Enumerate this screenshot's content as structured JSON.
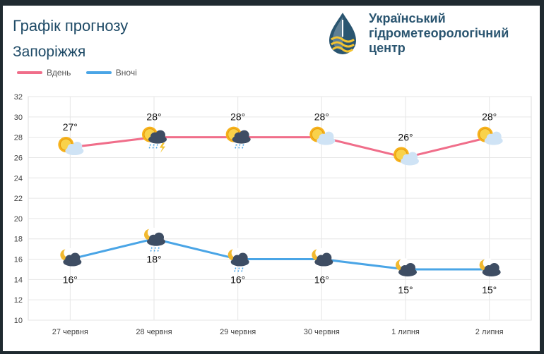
{
  "header": {
    "title": "Графік прогнозу",
    "subtitle": "Запоріжжя"
  },
  "logo": {
    "line1": "Український",
    "line2": "гідрометеорологічний",
    "line3": "центр"
  },
  "colors": {
    "day": "#f06e8a",
    "night": "#4aa5e6",
    "title": "#1e4a66"
  },
  "chart_data": {
    "type": "line",
    "categories": [
      "27 червня",
      "28 червня",
      "29 червня",
      "30 червня",
      "1 липня",
      "2 липня"
    ],
    "series": [
      {
        "name": "Вдень",
        "values": [
          27,
          28,
          28,
          28,
          26,
          28
        ],
        "labels": [
          "27°",
          "28°",
          "28°",
          "28°",
          "26°",
          "28°"
        ],
        "icons": [
          "sun-cloud-icon",
          "sun-storm-icon",
          "sun-rain-icon",
          "sun-cloud-icon",
          "sun-cloud-icon",
          "sun-cloud-icon"
        ]
      },
      {
        "name": "Вночі",
        "values": [
          16,
          18,
          16,
          16,
          15,
          15
        ],
        "labels": [
          "16°",
          "18°",
          "16°",
          "16°",
          "15°",
          "15°"
        ],
        "icons": [
          "moon-cloud-icon",
          "moon-rain-icon",
          "moon-rain-icon",
          "moon-cloud-icon",
          "moon-cloud-icon",
          "moon-cloud-icon"
        ]
      }
    ],
    "ylim": [
      10,
      32
    ],
    "yticks": [
      "10",
      "12",
      "14",
      "16",
      "18",
      "20",
      "22",
      "24",
      "26",
      "28",
      "30",
      "32"
    ],
    "grid": true,
    "legend": "top-left"
  }
}
